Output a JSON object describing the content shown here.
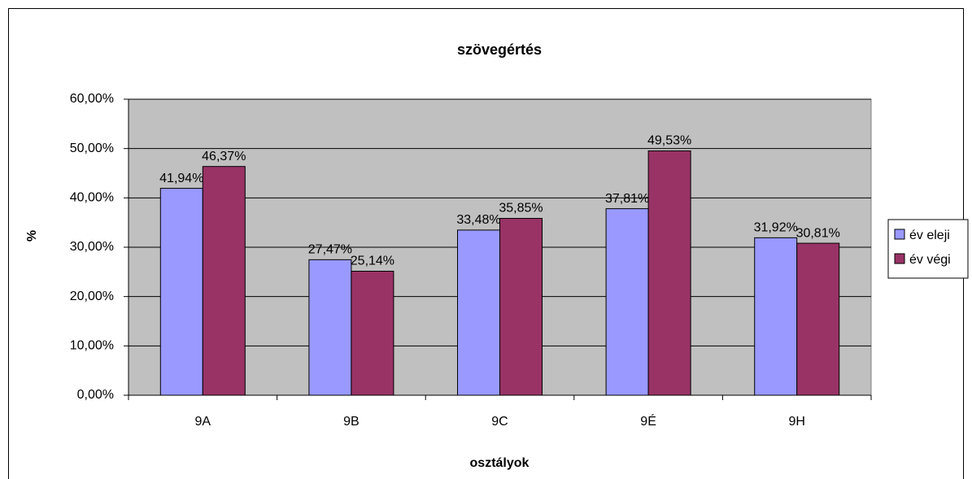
{
  "chart_data": {
    "type": "bar",
    "title": "szövegértés",
    "x_label": "osztályok",
    "y_label": "%",
    "categories": [
      "9A",
      "9B",
      "9C",
      "9É",
      "9H"
    ],
    "series": [
      {
        "name": "év eleji",
        "color": "#9999ff",
        "values": [
          41.94,
          27.47,
          33.48,
          37.81,
          31.92
        ],
        "value_labels": [
          "41,94%",
          "27,47%",
          "33,48%",
          "37,81%",
          "31,92%"
        ]
      },
      {
        "name": "év végi",
        "color": "#993366",
        "values": [
          46.37,
          25.14,
          35.85,
          49.53,
          30.81
        ],
        "value_labels": [
          "46,37%",
          "25,14%",
          "35,85%",
          "49,53%",
          "30,81%"
        ]
      }
    ],
    "ylim": [
      0,
      60
    ],
    "yticks": [
      {
        "value": 0,
        "label": "0,00%"
      },
      {
        "value": 10,
        "label": "10,00%"
      },
      {
        "value": 20,
        "label": "20,00%"
      },
      {
        "value": 30,
        "label": "30,00%"
      },
      {
        "value": 40,
        "label": "40,00%"
      },
      {
        "value": 50,
        "label": "50,00%"
      },
      {
        "value": 60,
        "label": "60,00%"
      }
    ],
    "grid": true,
    "legend": "right",
    "plot_background": "#c0c0c0"
  }
}
